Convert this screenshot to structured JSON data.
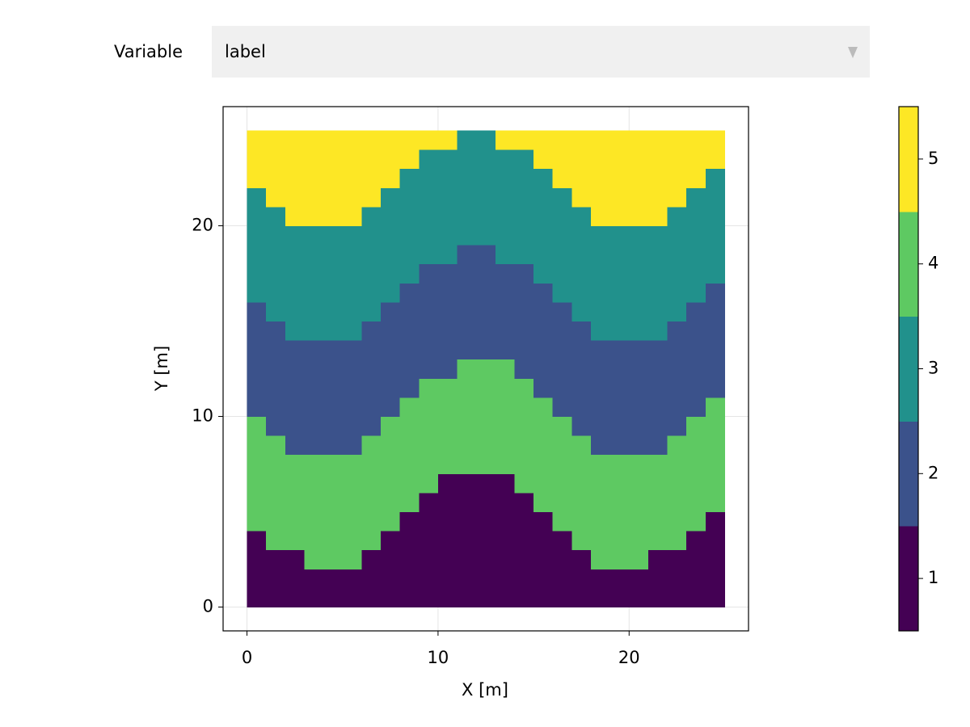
{
  "controls": {
    "label": "Variable",
    "selected": "label"
  },
  "chart_data": {
    "type": "heatmap",
    "xlabel": "X [m]",
    "ylabel": "Y [m]",
    "x_edges": [
      0,
      1,
      2,
      3,
      4,
      5,
      6,
      7,
      8,
      9,
      10,
      11,
      12,
      13,
      14,
      15,
      16,
      17,
      18,
      19,
      20,
      21,
      22,
      23,
      24,
      25
    ],
    "y_edges": [
      0,
      1,
      2,
      3,
      4,
      5,
      6,
      7,
      8,
      9,
      10,
      11,
      12,
      13,
      14,
      15,
      16,
      17,
      18,
      19,
      20,
      21,
      22,
      23,
      24,
      25
    ],
    "xlim": [
      -1.25,
      26.25
    ],
    "ylim": [
      -1.25,
      26.25
    ],
    "xticks": [
      0,
      10,
      20
    ],
    "yticks": [
      0,
      10,
      20
    ],
    "grid": true,
    "z": [
      [
        1,
        1,
        1,
        1,
        1,
        1,
        1,
        1,
        1,
        1,
        1,
        1,
        1,
        1,
        1,
        1,
        1,
        1,
        1,
        1,
        1,
        1,
        1,
        1,
        1
      ],
      [
        1,
        1,
        1,
        1,
        1,
        1,
        1,
        1,
        1,
        1,
        1,
        1,
        1,
        1,
        1,
        1,
        1,
        1,
        1,
        1,
        1,
        1,
        1,
        1,
        1
      ],
      [
        1,
        1,
        1,
        4,
        4,
        4,
        1,
        1,
        1,
        1,
        1,
        1,
        1,
        1,
        1,
        1,
        1,
        1,
        4,
        4,
        4,
        1,
        1,
        1,
        1
      ],
      [
        1,
        4,
        4,
        4,
        4,
        4,
        4,
        1,
        1,
        1,
        1,
        1,
        1,
        1,
        1,
        1,
        1,
        4,
        4,
        4,
        4,
        4,
        4,
        1,
        1
      ],
      [
        4,
        4,
        4,
        4,
        4,
        4,
        4,
        4,
        1,
        1,
        1,
        1,
        1,
        1,
        1,
        1,
        4,
        4,
        4,
        4,
        4,
        4,
        4,
        4,
        1
      ],
      [
        4,
        4,
        4,
        4,
        4,
        4,
        4,
        4,
        4,
        1,
        1,
        1,
        1,
        1,
        1,
        4,
        4,
        4,
        4,
        4,
        4,
        4,
        4,
        4,
        4
      ],
      [
        4,
        4,
        4,
        4,
        4,
        4,
        4,
        4,
        4,
        4,
        1,
        1,
        1,
        1,
        4,
        4,
        4,
        4,
        4,
        4,
        4,
        4,
        4,
        4,
        4
      ],
      [
        4,
        4,
        4,
        4,
        4,
        4,
        4,
        4,
        4,
        4,
        4,
        4,
        4,
        4,
        4,
        4,
        4,
        4,
        4,
        4,
        4,
        4,
        4,
        4,
        4
      ],
      [
        4,
        4,
        2,
        2,
        2,
        2,
        4,
        4,
        4,
        4,
        4,
        4,
        4,
        4,
        4,
        4,
        4,
        4,
        2,
        2,
        2,
        2,
        4,
        4,
        4
      ],
      [
        4,
        2,
        2,
        2,
        2,
        2,
        2,
        4,
        4,
        4,
        4,
        4,
        4,
        4,
        4,
        4,
        4,
        2,
        2,
        2,
        2,
        2,
        2,
        4,
        4
      ],
      [
        2,
        2,
        2,
        2,
        2,
        2,
        2,
        2,
        4,
        4,
        4,
        4,
        4,
        4,
        4,
        4,
        2,
        2,
        2,
        2,
        2,
        2,
        2,
        2,
        4
      ],
      [
        2,
        2,
        2,
        2,
        2,
        2,
        2,
        2,
        2,
        4,
        4,
        4,
        4,
        4,
        4,
        2,
        2,
        2,
        2,
        2,
        2,
        2,
        2,
        2,
        2
      ],
      [
        2,
        2,
        2,
        2,
        2,
        2,
        2,
        2,
        2,
        2,
        2,
        4,
        4,
        4,
        2,
        2,
        2,
        2,
        2,
        2,
        2,
        2,
        2,
        2,
        2
      ],
      [
        2,
        2,
        2,
        2,
        2,
        2,
        2,
        2,
        2,
        2,
        2,
        2,
        2,
        2,
        2,
        2,
        2,
        2,
        2,
        2,
        2,
        2,
        2,
        2,
        2
      ],
      [
        2,
        2,
        3,
        3,
        3,
        3,
        2,
        2,
        2,
        2,
        2,
        2,
        2,
        2,
        2,
        2,
        2,
        2,
        3,
        3,
        3,
        3,
        2,
        2,
        2
      ],
      [
        2,
        3,
        3,
        3,
        3,
        3,
        3,
        2,
        2,
        2,
        2,
        2,
        2,
        2,
        2,
        2,
        2,
        3,
        3,
        3,
        3,
        3,
        3,
        2,
        2
      ],
      [
        3,
        3,
        3,
        3,
        3,
        3,
        3,
        3,
        2,
        2,
        2,
        2,
        2,
        2,
        2,
        2,
        3,
        3,
        3,
        3,
        3,
        3,
        3,
        3,
        2
      ],
      [
        3,
        3,
        3,
        3,
        3,
        3,
        3,
        3,
        3,
        2,
        2,
        2,
        2,
        2,
        2,
        3,
        3,
        3,
        3,
        3,
        3,
        3,
        3,
        3,
        3
      ],
      [
        3,
        3,
        3,
        3,
        3,
        3,
        3,
        3,
        3,
        3,
        3,
        2,
        2,
        3,
        3,
        3,
        3,
        3,
        3,
        3,
        3,
        3,
        3,
        3,
        3
      ],
      [
        3,
        3,
        3,
        3,
        3,
        3,
        3,
        3,
        3,
        3,
        3,
        3,
        3,
        3,
        3,
        3,
        3,
        3,
        3,
        3,
        3,
        3,
        3,
        3,
        3
      ],
      [
        3,
        3,
        5,
        5,
        5,
        5,
        3,
        3,
        3,
        3,
        3,
        3,
        3,
        3,
        3,
        3,
        3,
        3,
        5,
        5,
        5,
        5,
        3,
        3,
        3
      ],
      [
        3,
        5,
        5,
        5,
        5,
        5,
        5,
        3,
        3,
        3,
        3,
        3,
        3,
        3,
        3,
        3,
        3,
        5,
        5,
        5,
        5,
        5,
        5,
        3,
        3
      ],
      [
        5,
        5,
        5,
        5,
        5,
        5,
        5,
        5,
        3,
        3,
        3,
        3,
        3,
        3,
        3,
        3,
        5,
        5,
        5,
        5,
        5,
        5,
        5,
        5,
        3
      ],
      [
        5,
        5,
        5,
        5,
        5,
        5,
        5,
        5,
        5,
        3,
        3,
        3,
        3,
        3,
        3,
        5,
        5,
        5,
        5,
        5,
        5,
        5,
        5,
        5,
        5
      ],
      [
        5,
        5,
        5,
        5,
        5,
        5,
        5,
        5,
        5,
        5,
        5,
        3,
        3,
        5,
        5,
        5,
        5,
        5,
        5,
        5,
        5,
        5,
        5,
        5,
        5
      ]
    ],
    "colorbar": {
      "lim": [
        0.5,
        5.5
      ],
      "ticks": [
        1,
        2,
        3,
        4,
        5
      ],
      "colors": [
        "#440154",
        "#3b528b",
        "#21918c",
        "#5ec962",
        "#fde725"
      ]
    }
  }
}
